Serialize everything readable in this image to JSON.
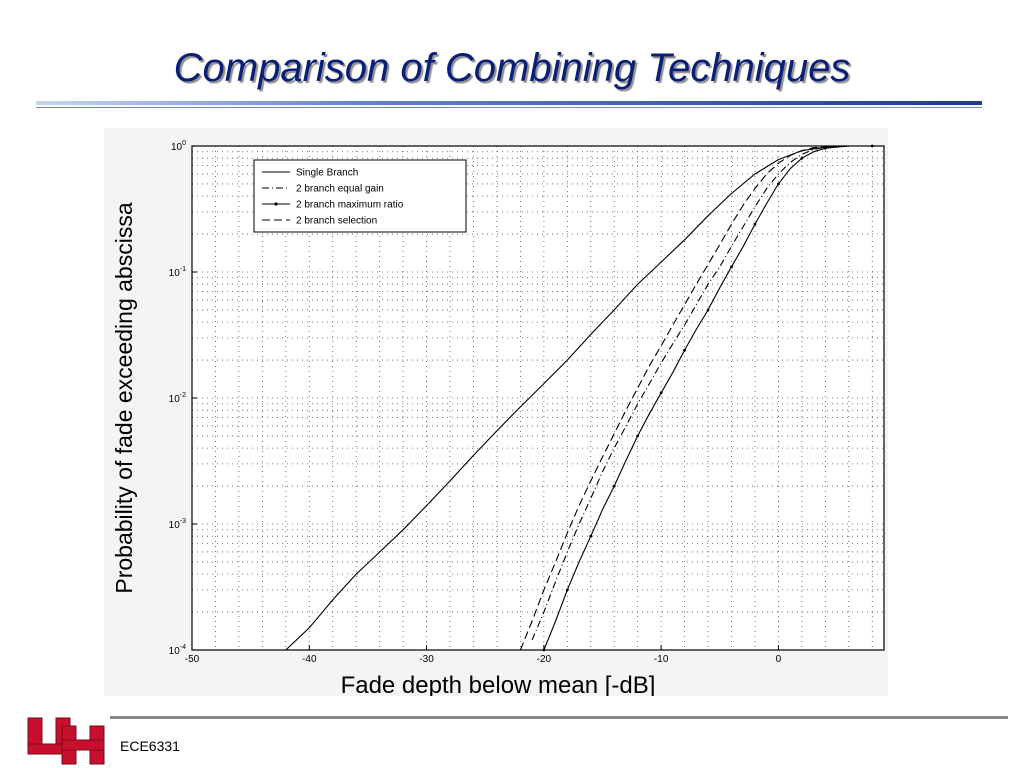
{
  "slide": {
    "title": "Comparison of Combining Techniques",
    "footer": "ECE6331"
  },
  "colors": {
    "title": "#0a1f78",
    "logo_red": "#c8102e",
    "curve": "#000000"
  },
  "chart_data": {
    "type": "line",
    "title": "",
    "xlabel": "Fade depth below mean [-dB]",
    "ylabel": "Probability of fade exceeding abscissa",
    "xlim": [
      -50,
      9
    ],
    "ylim": [
      0.0001,
      1
    ],
    "yscale": "log",
    "grid": true,
    "legend_position": "top-left",
    "x_ticks": [
      -50,
      -40,
      -30,
      -20,
      -10,
      0
    ],
    "y_ticks": [
      {
        "value": 1,
        "base": "10",
        "exp": "0"
      },
      {
        "value": 0.1,
        "base": "10",
        "exp": "-1"
      },
      {
        "value": 0.01,
        "base": "10",
        "exp": "-2"
      },
      {
        "value": 0.001,
        "base": "10",
        "exp": "-3"
      },
      {
        "value": 0.0001,
        "base": "10",
        "exp": "-4"
      }
    ],
    "series": [
      {
        "name": "Single Branch",
        "style": "solid",
        "x": [
          -42,
          -40,
          -38,
          -36,
          -34,
          -32,
          -30,
          -28,
          -26,
          -24,
          -22,
          -20,
          -18,
          -16,
          -14,
          -12,
          -10,
          -8,
          -6,
          -4,
          -2,
          0,
          2,
          4,
          6,
          8
        ],
        "y": [
          0.0001,
          0.00015,
          0.00025,
          0.0004,
          0.0006,
          0.0009,
          0.0014,
          0.0022,
          0.0035,
          0.0055,
          0.0085,
          0.013,
          0.02,
          0.032,
          0.05,
          0.08,
          0.12,
          0.18,
          0.28,
          0.42,
          0.6,
          0.78,
          0.92,
          0.98,
          1.0,
          1.0
        ]
      },
      {
        "name": "2 branch equal gain",
        "style": "dashdot",
        "x": [
          -21,
          -20,
          -19,
          -18,
          -17,
          -16,
          -15,
          -14,
          -13,
          -12,
          -11,
          -10,
          -9,
          -8,
          -7,
          -6,
          -5,
          -4,
          -3,
          -2,
          -1,
          0,
          1,
          2,
          3,
          4,
          6,
          8
        ],
        "y": [
          0.00012,
          0.0002,
          0.00035,
          0.0006,
          0.001,
          0.0016,
          0.0026,
          0.004,
          0.006,
          0.009,
          0.013,
          0.019,
          0.027,
          0.038,
          0.055,
          0.08,
          0.11,
          0.16,
          0.23,
          0.33,
          0.46,
          0.6,
          0.74,
          0.86,
          0.94,
          0.98,
          1.0,
          1.0
        ]
      },
      {
        "name": "2 branch maximum ratio",
        "style": "solid-dot",
        "x": [
          -20,
          -19,
          -18,
          -17,
          -16,
          -15,
          -14,
          -13,
          -12,
          -11,
          -10,
          -9,
          -8,
          -7,
          -6,
          -5,
          -4,
          -3,
          -2,
          -1,
          0,
          1,
          2,
          3,
          4,
          6,
          8
        ],
        "y": [
          0.0001,
          0.00017,
          0.0003,
          0.0005,
          0.0008,
          0.0013,
          0.002,
          0.0032,
          0.005,
          0.0075,
          0.011,
          0.016,
          0.024,
          0.035,
          0.05,
          0.075,
          0.11,
          0.16,
          0.24,
          0.35,
          0.5,
          0.66,
          0.8,
          0.9,
          0.96,
          1.0,
          1.0
        ]
      },
      {
        "name": "2 branch selection",
        "style": "dashed",
        "x": [
          -22,
          -21,
          -20,
          -19,
          -18,
          -17,
          -16,
          -15,
          -14,
          -13,
          -12,
          -11,
          -10,
          -9,
          -8,
          -7,
          -6,
          -5,
          -4,
          -3,
          -2,
          -1,
          0,
          1,
          2,
          3,
          5,
          8
        ],
        "y": [
          0.0001,
          0.00017,
          0.0003,
          0.0005,
          0.00085,
          0.0014,
          0.0022,
          0.0034,
          0.0052,
          0.008,
          0.012,
          0.018,
          0.026,
          0.038,
          0.055,
          0.08,
          0.115,
          0.165,
          0.24,
          0.34,
          0.46,
          0.6,
          0.73,
          0.84,
          0.92,
          0.97,
          1.0,
          1.0
        ]
      }
    ]
  }
}
